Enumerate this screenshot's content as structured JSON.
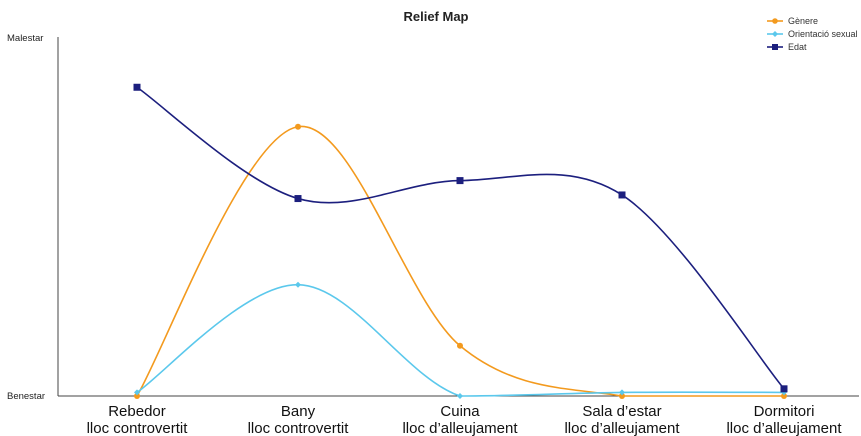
{
  "chart_data": {
    "type": "line",
    "title": "Relief Map",
    "xlabel": "",
    "ylabel": "",
    "categories": [
      [
        "Rebedor",
        "lloc controvertit"
      ],
      [
        "Bany",
        "lloc controvertit"
      ],
      [
        "Cuina",
        "lloc d’alleujament"
      ],
      [
        "Sala d’estar",
        "lloc d’alleujament"
      ],
      [
        "Dormitori",
        "lloc d’alleujament"
      ]
    ],
    "y_tick_labels": {
      "top": "Malestar",
      "bottom": "Benestar"
    },
    "ylim": [
      0,
      10
    ],
    "smooth": true,
    "grid": false,
    "legend_position": "top-right",
    "series": [
      {
        "name": "Gènere",
        "color": "#F39A1E",
        "marker": "circle",
        "values": [
          0.0,
          7.5,
          1.4,
          0.0,
          0.0
        ]
      },
      {
        "name": "Orientació sexual",
        "color": "#5BC8EC",
        "marker": "diamond",
        "values": [
          0.1,
          3.1,
          0.0,
          0.1,
          0.1
        ]
      },
      {
        "name": "Edat",
        "color": "#1C1F7E",
        "marker": "square",
        "values": [
          8.6,
          5.5,
          6.0,
          5.6,
          0.2
        ]
      }
    ]
  }
}
